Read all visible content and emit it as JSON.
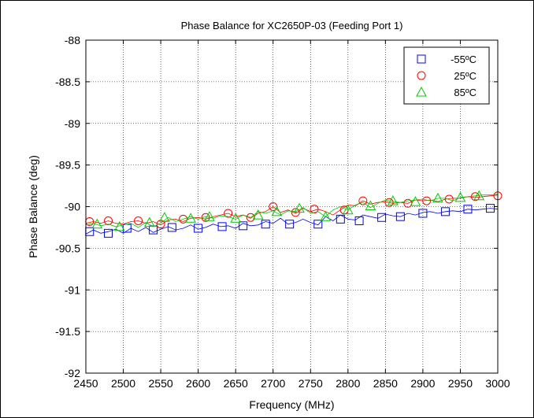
{
  "chart_data": {
    "type": "line",
    "title": "Phase Balance for XC2650P-03 (Feeding Port 1)",
    "xlabel": "Frequency (MHz)",
    "ylabel": "Phase Balance (deg)",
    "xlim": [
      2450,
      3000
    ],
    "ylim": [
      -92,
      -88
    ],
    "xticks": [
      2450,
      2500,
      2550,
      2600,
      2650,
      2700,
      2750,
      2800,
      2850,
      2900,
      2950,
      3000
    ],
    "xtick_labels": [
      "2450",
      "2500",
      "2550",
      "2600",
      "2650",
      "2700",
      "2750",
      "2800",
      "2850",
      "2900",
      "2950",
      "3000"
    ],
    "yticks": [
      -88,
      -88.5,
      -89,
      -89.5,
      -90,
      -90.5,
      -91,
      -91.5,
      -92
    ],
    "ytick_labels": [
      "-88",
      "-88.5",
      "-89",
      "-89.5",
      "-90",
      "-90.5",
      "-91",
      "-91.5",
      "-92"
    ],
    "grid": true,
    "legend_position": "top-right",
    "series": [
      {
        "name": "-55ºC",
        "color": "#0000ff",
        "marker": "square",
        "x": [
          2450,
          2460,
          2470,
          2480,
          2490,
          2500,
          2510,
          2520,
          2530,
          2540,
          2550,
          2560,
          2570,
          2580,
          2590,
          2600,
          2610,
          2620,
          2630,
          2640,
          2650,
          2660,
          2670,
          2680,
          2690,
          2700,
          2710,
          2720,
          2730,
          2740,
          2750,
          2760,
          2770,
          2780,
          2790,
          2800,
          2810,
          2820,
          2830,
          2840,
          2850,
          2860,
          2870,
          2880,
          2890,
          2900,
          2910,
          2920,
          2930,
          2940,
          2950,
          2960,
          2970,
          2980,
          2990,
          3000
        ],
        "y": [
          -90.33,
          -90.28,
          -90.32,
          -90.3,
          -90.27,
          -90.32,
          -90.26,
          -90.3,
          -90.25,
          -90.31,
          -90.27,
          -90.24,
          -90.28,
          -90.26,
          -90.22,
          -90.27,
          -90.25,
          -90.21,
          -90.24,
          -90.23,
          -90.26,
          -90.2,
          -90.23,
          -90.22,
          -90.18,
          -90.2,
          -90.14,
          -90.21,
          -90.19,
          -90.15,
          -90.19,
          -90.22,
          -90.12,
          -90.17,
          -90.1,
          -90.15,
          -90.16,
          -90.1,
          -90.12,
          -90.14,
          -90.09,
          -90.11,
          -90.12,
          -90.08,
          -90.1,
          -90.07,
          -90.06,
          -90.08,
          -90.06,
          -90.05,
          -90.06,
          -90.03,
          -90.04,
          -90.03,
          -90.02,
          -90.03
        ],
        "markers": [
          [
            2455,
            -90.3
          ],
          [
            2480,
            -90.32
          ],
          [
            2505,
            -90.26
          ],
          [
            2540,
            -90.28
          ],
          [
            2565,
            -90.25
          ],
          [
            2600,
            -90.26
          ],
          [
            2632,
            -90.24
          ],
          [
            2660,
            -90.23
          ],
          [
            2690,
            -90.21
          ],
          [
            2722,
            -90.21
          ],
          [
            2760,
            -90.21
          ],
          [
            2790,
            -90.15
          ],
          [
            2815,
            -90.17
          ],
          [
            2845,
            -90.13
          ],
          [
            2870,
            -90.12
          ],
          [
            2900,
            -90.08
          ],
          [
            2930,
            -90.06
          ],
          [
            2960,
            -90.03
          ],
          [
            2990,
            -90.02
          ]
        ]
      },
      {
        "name": "25ºC",
        "color": "#ff0000",
        "marker": "circle",
        "x": [
          2450,
          2460,
          2470,
          2480,
          2490,
          2500,
          2510,
          2520,
          2530,
          2540,
          2550,
          2560,
          2570,
          2580,
          2590,
          2600,
          2610,
          2620,
          2630,
          2640,
          2650,
          2660,
          2670,
          2680,
          2690,
          2700,
          2710,
          2720,
          2730,
          2740,
          2750,
          2760,
          2770,
          2780,
          2790,
          2800,
          2810,
          2820,
          2830,
          2840,
          2850,
          2860,
          2870,
          2880,
          2890,
          2900,
          2910,
          2920,
          2930,
          2940,
          2950,
          2960,
          2970,
          2980,
          2990,
          3000
        ],
        "y": [
          -90.2,
          -90.18,
          -90.2,
          -90.17,
          -90.2,
          -90.21,
          -90.18,
          -90.17,
          -90.2,
          -90.18,
          -90.22,
          -90.16,
          -90.15,
          -90.18,
          -90.14,
          -90.13,
          -90.15,
          -90.12,
          -90.1,
          -90.08,
          -90.12,
          -90.1,
          -90.14,
          -90.08,
          -90.06,
          -90.0,
          -90.07,
          -90.04,
          -90.08,
          -90.02,
          -90.06,
          -90.03,
          -90.06,
          -90.1,
          -90.04,
          -89.98,
          -89.99,
          -89.93,
          -89.97,
          -89.95,
          -89.94,
          -89.96,
          -89.95,
          -89.96,
          -89.92,
          -89.93,
          -89.92,
          -89.94,
          -89.91,
          -89.9,
          -89.9,
          -89.88,
          -89.89,
          -89.88,
          -89.87,
          -89.86
        ],
        "markers": [
          [
            2455,
            -90.18
          ],
          [
            2480,
            -90.17
          ],
          [
            2520,
            -90.17
          ],
          [
            2550,
            -90.21
          ],
          [
            2580,
            -90.15
          ],
          [
            2610,
            -90.13
          ],
          [
            2640,
            -90.08
          ],
          [
            2670,
            -90.13
          ],
          [
            2700,
            -90.0
          ],
          [
            2730,
            -90.07
          ],
          [
            2755,
            -90.03
          ],
          [
            2795,
            -90.04
          ],
          [
            2820,
            -89.93
          ],
          [
            2855,
            -89.95
          ],
          [
            2880,
            -89.96
          ],
          [
            2905,
            -89.93
          ],
          [
            2935,
            -89.91
          ],
          [
            2970,
            -89.88
          ],
          [
            3000,
            -89.87
          ]
        ]
      },
      {
        "name": "85ºC",
        "color": "#00cc00",
        "marker": "triangle",
        "x": [
          2450,
          2460,
          2470,
          2480,
          2490,
          2500,
          2510,
          2520,
          2530,
          2540,
          2550,
          2560,
          2570,
          2580,
          2590,
          2600,
          2610,
          2620,
          2630,
          2640,
          2650,
          2660,
          2670,
          2680,
          2690,
          2700,
          2710,
          2720,
          2730,
          2740,
          2750,
          2760,
          2770,
          2780,
          2790,
          2800,
          2810,
          2820,
          2830,
          2840,
          2850,
          2860,
          2870,
          2880,
          2890,
          2900,
          2910,
          2920,
          2930,
          2940,
          2950,
          2960,
          2970,
          2980,
          2990,
          3000
        ],
        "y": [
          -90.22,
          -90.2,
          -90.23,
          -90.21,
          -90.24,
          -90.22,
          -90.2,
          -90.25,
          -90.19,
          -90.24,
          -90.2,
          -90.13,
          -90.18,
          -90.15,
          -90.12,
          -90.15,
          -90.12,
          -90.14,
          -90.11,
          -90.12,
          -90.15,
          -90.1,
          -90.13,
          -90.06,
          -90.08,
          -90.05,
          -90.1,
          -90.05,
          -90.06,
          -90.01,
          -90.08,
          -90.06,
          -90.12,
          -90.04,
          -90.0,
          -90.04,
          -89.98,
          -89.95,
          -90.01,
          -89.96,
          -89.92,
          -89.94,
          -89.95,
          -89.93,
          -89.92,
          -89.91,
          -89.93,
          -89.9,
          -89.9,
          -89.93,
          -89.89,
          -89.88,
          -89.87,
          -89.86,
          -89.86,
          -89.85
        ],
        "markers": [
          [
            2465,
            -90.21
          ],
          [
            2495,
            -90.24
          ],
          [
            2535,
            -90.19
          ],
          [
            2555,
            -90.13
          ],
          [
            2590,
            -90.14
          ],
          [
            2615,
            -90.12
          ],
          [
            2650,
            -90.14
          ],
          [
            2680,
            -90.1
          ],
          [
            2705,
            -90.06
          ],
          [
            2735,
            -90.02
          ],
          [
            2770,
            -90.12
          ],
          [
            2800,
            -90.04
          ],
          [
            2830,
            -89.99
          ],
          [
            2860,
            -89.93
          ],
          [
            2890,
            -89.94
          ],
          [
            2920,
            -89.9
          ],
          [
            2950,
            -89.89
          ],
          [
            2975,
            -89.87
          ]
        ]
      }
    ]
  }
}
